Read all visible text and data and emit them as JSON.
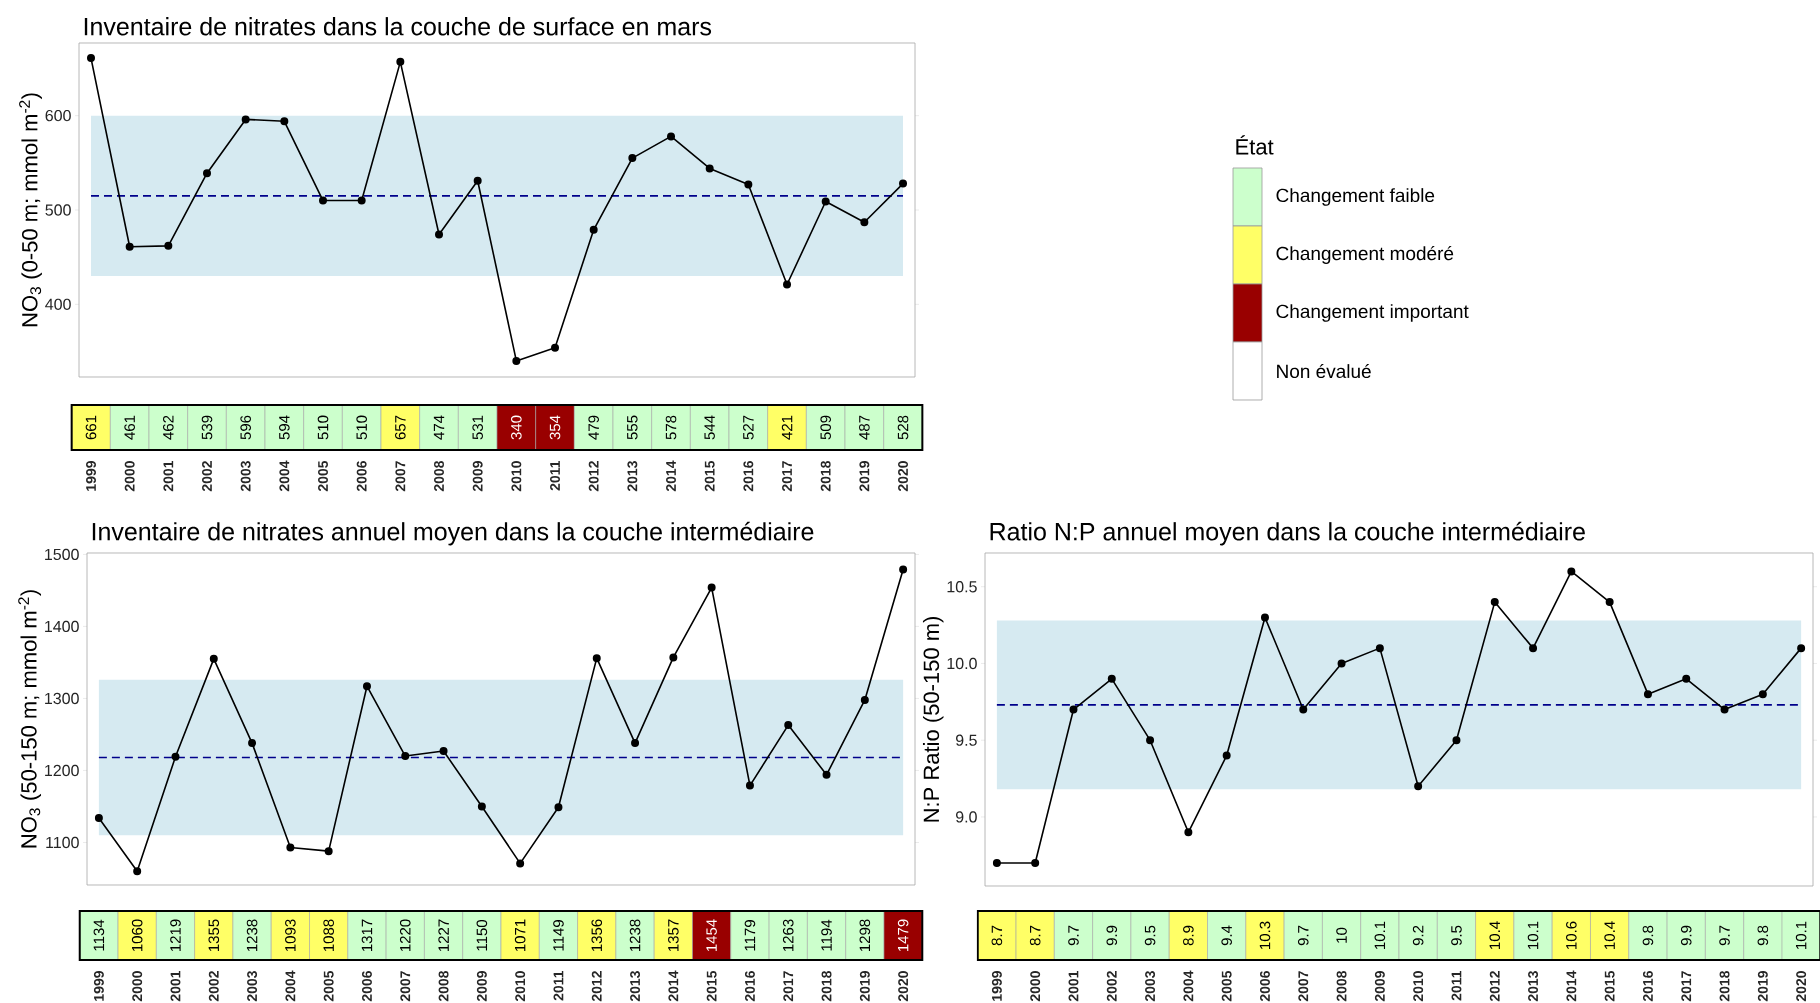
{
  "chart_data": [
    {
      "type": "line",
      "title": "Inventaire de nitrates dans la couche de surface en mars",
      "ylabel": "NO$_{3}$ (0-50 m; mmol m$^{-2}$)",
      "categories": [
        "1999",
        "2000",
        "2001",
        "2002",
        "2003",
        "2004",
        "2005",
        "2006",
        "2007",
        "2008",
        "2009",
        "2010",
        "2011",
        "2012",
        "2013",
        "2014",
        "2015",
        "2016",
        "2017",
        "2018",
        "2019",
        "2020"
      ],
      "series": [
        {
          "color": "#000000",
          "values": [
            661,
            461,
            462,
            539,
            596,
            594,
            510,
            510,
            657,
            474,
            531,
            340,
            354,
            479,
            555,
            578,
            544,
            527,
            421,
            509,
            487,
            528
          ],
          "colors": [
            "#ffff66",
            "#ccffcc",
            "#ccffcc",
            "#ccffcc",
            "#ccffcc",
            "#ccffcc",
            "#ccffcc",
            "#ccffcc",
            "#ffff66",
            "#ccffcc",
            "#ccffcc",
            "#990000",
            "#990000",
            "#ccffcc",
            "#ccffcc",
            "#ccffcc",
            "#ccffcc",
            "#ccffcc",
            "#ffff66",
            "#ccffcc",
            "#ccffcc",
            "#ccffcc"
          ]
        }
      ],
      "marker": "circle",
      "data_labels": true,
      "ylim": [
        323,
        677
      ],
      "yticks": [
        400,
        500,
        600
      ],
      "bands": [
        {
          "axis": "y",
          "from": 430,
          "to": 600,
          "color": "#d6eaf1"
        }
      ],
      "ref_lines": [
        {
          "axis": "y",
          "value": 515,
          "color": "#00008b",
          "line_style": "dashed"
        }
      ]
    },
    {
      "type": "other",
      "legend_title": "État",
      "categories": [
        "Changement faible",
        "Changement modéré",
        "Changement important",
        "Non évalué"
      ],
      "colors": [
        "#ccffcc",
        "#ffff66",
        "#990000",
        "#ffffff"
      ]
    },
    {
      "type": "line",
      "title": "Inventaire de nitrates annuel moyen dans la couche intermédiaire",
      "ylabel": "NO$_{3}$ (50-150 m; mmol m$^{-2}$)",
      "categories": [
        "1999",
        "2000",
        "2001",
        "2002",
        "2003",
        "2004",
        "2005",
        "2006",
        "2007",
        "2008",
        "2009",
        "2010",
        "2011",
        "2012",
        "2013",
        "2014",
        "2015",
        "2016",
        "2017",
        "2018",
        "2019",
        "2020"
      ],
      "series": [
        {
          "color": "#000000",
          "values": [
            1134,
            1060,
            1219,
            1355,
            1238,
            1093,
            1088,
            1317,
            1220,
            1227,
            1150,
            1071,
            1149,
            1356,
            1238,
            1357,
            1454,
            1179,
            1263,
            1194,
            1298,
            1479
          ],
          "colors": [
            "#ccffcc",
            "#ffff66",
            "#ccffcc",
            "#ffff66",
            "#ccffcc",
            "#ffff66",
            "#ffff66",
            "#ccffcc",
            "#ccffcc",
            "#ccffcc",
            "#ccffcc",
            "#ffff66",
            "#ccffcc",
            "#ffff66",
            "#ccffcc",
            "#ffff66",
            "#990000",
            "#ccffcc",
            "#ccffcc",
            "#ccffcc",
            "#ccffcc",
            "#990000"
          ]
        }
      ],
      "marker": "circle",
      "data_labels": true,
      "ylim": [
        1041,
        1502
      ],
      "yticks": [
        1100,
        1200,
        1300,
        1400,
        1500
      ],
      "bands": [
        {
          "axis": "y",
          "from": 1110,
          "to": 1326,
          "color": "#d6eaf1"
        }
      ],
      "ref_lines": [
        {
          "axis": "y",
          "value": 1218,
          "color": "#00008b",
          "line_style": "dashed"
        }
      ]
    },
    {
      "type": "line",
      "title": "Ratio N:P annuel moyen dans la couche intermédiaire",
      "ylabel": "N:P Ratio (50-150 m)",
      "categories": [
        "1999",
        "2000",
        "2001",
        "2002",
        "2003",
        "2004",
        "2005",
        "2006",
        "2007",
        "2008",
        "2009",
        "2010",
        "2011",
        "2012",
        "2013",
        "2014",
        "2015",
        "2016",
        "2017",
        "2018",
        "2019",
        "2020"
      ],
      "series": [
        {
          "color": "#000000",
          "values": [
            8.7,
            8.7,
            9.7,
            9.9,
            9.5,
            8.9,
            9.4,
            10.3,
            9.7,
            10,
            10.1,
            9.2,
            9.5,
            10.4,
            10.1,
            10.6,
            10.4,
            9.8,
            9.9,
            9.7,
            9.8,
            10.1
          ],
          "colors": [
            "#ffff66",
            "#ffff66",
            "#ccffcc",
            "#ccffcc",
            "#ccffcc",
            "#ffff66",
            "#ccffcc",
            "#ffff66",
            "#ccffcc",
            "#ccffcc",
            "#ccffcc",
            "#ccffcc",
            "#ccffcc",
            "#ffff66",
            "#ccffcc",
            "#ffff66",
            "#ffff66",
            "#ccffcc",
            "#ccffcc",
            "#ccffcc",
            "#ccffcc",
            "#ccffcc"
          ]
        }
      ],
      "marker": "circle",
      "data_labels": true,
      "ylim": [
        8.55,
        10.72
      ],
      "yticks": [
        {
          "value": 9,
          "label": "9.0"
        },
        9.5,
        {
          "value": 10,
          "label": "10.0"
        },
        10.5
      ],
      "bands": [
        {
          "axis": "y",
          "from": 9.18,
          "to": 10.28,
          "color": "#d6eaf1"
        }
      ],
      "ref_lines": [
        {
          "axis": "y",
          "value": 9.73,
          "color": "#00008b",
          "line_style": "dashed"
        }
      ]
    }
  ]
}
